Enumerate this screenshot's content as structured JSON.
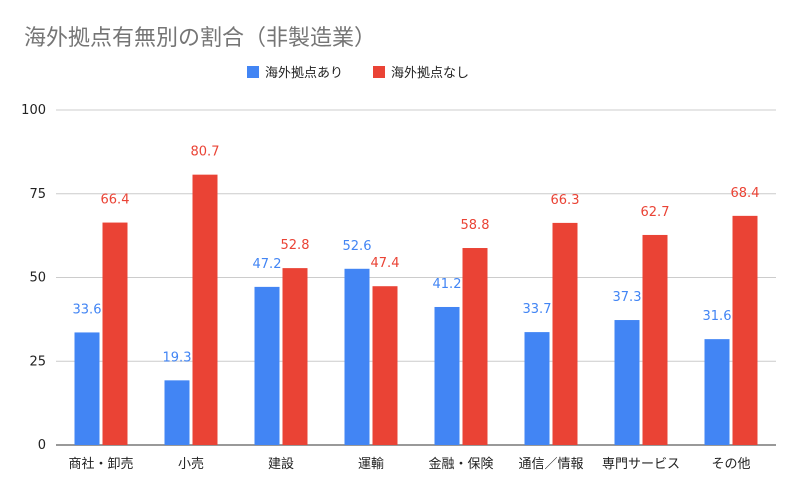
{
  "chart_data": {
    "type": "bar",
    "title": "海外拠点有無別の割合（非製造業）",
    "xlabel": "",
    "ylabel": "",
    "categories": [
      "商社・卸売",
      "小売",
      "建設",
      "運輸",
      "金融・保険",
      "通信／情報",
      "専門サービス",
      "その他"
    ],
    "series": [
      {
        "name": "海外拠点あり",
        "color": "#4285f4",
        "values": [
          33.6,
          19.3,
          47.2,
          52.6,
          41.2,
          33.7,
          37.3,
          31.6
        ]
      },
      {
        "name": "海外拠点なし",
        "color": "#ea4335",
        "values": [
          66.4,
          80.7,
          52.8,
          47.4,
          58.8,
          66.3,
          62.7,
          68.4
        ]
      }
    ],
    "ylim": [
      0,
      100
    ],
    "yticks": [
      0,
      25,
      50,
      75,
      100
    ],
    "grid": true,
    "legend_position": "top"
  }
}
